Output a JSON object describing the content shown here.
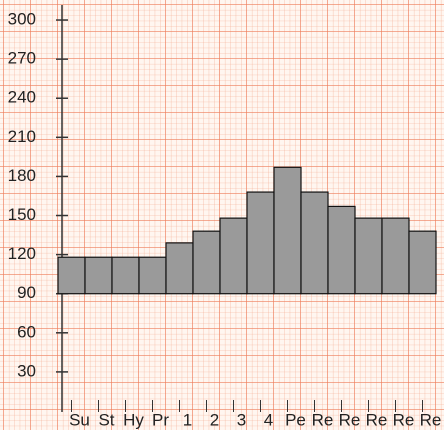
{
  "chart_data": {
    "type": "floating-bar",
    "categories": [
      "Su",
      "St",
      "Hy",
      "Pr",
      "1",
      "2",
      "3",
      "4",
      "Pe",
      "Re",
      "Re",
      "Re",
      "Re",
      "Re"
    ],
    "bottoms": [
      90,
      90,
      90,
      90,
      90,
      90,
      90,
      90,
      90,
      90,
      90,
      90,
      90,
      90
    ],
    "values": [
      118,
      118,
      118,
      118,
      129,
      138,
      148,
      168,
      187,
      168,
      157,
      148,
      148,
      138
    ],
    "color": "#9a9a9a",
    "ylim": [
      0,
      310
    ],
    "yticks": [
      30,
      60,
      90,
      120,
      150,
      180,
      210,
      240,
      270,
      300
    ]
  }
}
